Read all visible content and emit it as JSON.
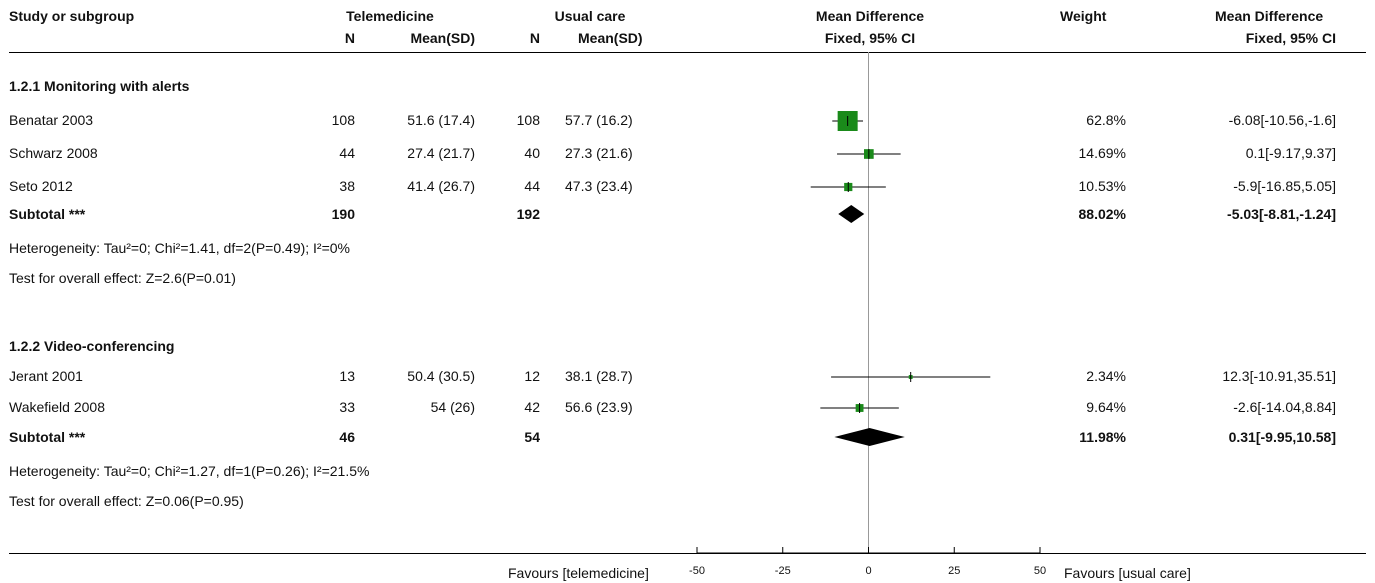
{
  "header": {
    "study": "Study or subgroup",
    "group1": "Telemedicine",
    "group2": "Usual care",
    "md": "Mean Difference",
    "weight": "Weight",
    "md2": "Mean Difference",
    "n": "N",
    "meansd": "Mean(SD)",
    "method": "Fixed, 95% CI",
    "method2": "Fixed, 95% CI"
  },
  "subgroups": [
    {
      "title": "1.2.1 Monitoring with alerts",
      "studies": [
        {
          "name": "Benatar 2003",
          "n1": "108",
          "m1": "51.6 (17.4)",
          "n2": "108",
          "m2": "57.7 (16.2)",
          "weight": "62.8%",
          "ci_text": "-6.08[-10.56,-1.6]"
        },
        {
          "name": "Schwarz 2008",
          "n1": "44",
          "m1": "27.4 (21.7)",
          "n2": "40",
          "m2": "27.3 (21.6)",
          "weight": "14.69%",
          "ci_text": "0.1[-9.17,9.37]"
        },
        {
          "name": "Seto 2012",
          "n1": "38",
          "m1": "41.4 (26.7)",
          "n2": "44",
          "m2": "47.3 (23.4)",
          "weight": "10.53%",
          "ci_text": "-5.9[-16.85,5.05]"
        }
      ],
      "subtotal": {
        "label": "Subtotal ***",
        "n1": "190",
        "n2": "192",
        "weight": "88.02%",
        "ci_text": "-5.03[-8.81,-1.24]"
      },
      "heterogeneity": "Heterogeneity: Tau²=0; Chi²=1.41, df=2(P=0.49); I²=0%",
      "overall": "Test for overall effect: Z=2.6(P=0.01)"
    },
    {
      "title": "1.2.2 Video-conferencing",
      "studies": [
        {
          "name": "Jerant 2001",
          "n1": "13",
          "m1": "50.4 (30.5)",
          "n2": "12",
          "m2": "38.1 (28.7)",
          "weight": "2.34%",
          "ci_text": "12.3[-10.91,35.51]"
        },
        {
          "name": "Wakefield 2008",
          "n1": "33",
          "m1": "54 (26)",
          "n2": "42",
          "m2": "56.6 (23.9)",
          "weight": "9.64%",
          "ci_text": "-2.6[-14.04,8.84]"
        }
      ],
      "subtotal": {
        "label": "Subtotal ***",
        "n1": "46",
        "n2": "54",
        "weight": "11.98%",
        "ci_text": "0.31[-9.95,10.58]"
      },
      "heterogeneity": "Heterogeneity: Tau²=0; Chi²=1.27, df=1(P=0.26); I²=21.5%",
      "overall": "Test for overall effect: Z=0.06(P=0.95)"
    }
  ],
  "footer": {
    "favours_left": "Favours [telemedicine]",
    "favours_right": "Favours [usual care]"
  },
  "colors": {
    "study_marker": "#1a8a1a",
    "diamond": "#000000",
    "axis": "#000000"
  },
  "chart_data": {
    "type": "forest",
    "xlim": [
      -50,
      50
    ],
    "xticks": [
      "-50",
      "-25",
      "0",
      "25",
      "50"
    ],
    "null_line": 0,
    "studies": [
      {
        "name": "Benatar 2003",
        "md": -6.08,
        "lo": -10.56,
        "hi": -1.6,
        "weight": 62.8
      },
      {
        "name": "Schwarz 2008",
        "md": 0.1,
        "lo": -9.17,
        "hi": 9.37,
        "weight": 14.69
      },
      {
        "name": "Seto 2012",
        "md": -5.9,
        "lo": -16.85,
        "hi": 5.05,
        "weight": 10.53
      },
      {
        "name": "Jerant 2001",
        "md": 12.3,
        "lo": -10.91,
        "hi": 35.51,
        "weight": 2.34
      },
      {
        "name": "Wakefield 2008",
        "md": -2.6,
        "lo": -14.04,
        "hi": 8.84,
        "weight": 9.64
      }
    ],
    "subtotals": [
      {
        "name": "Subtotal 1.2.1",
        "md": -5.03,
        "lo": -8.81,
        "hi": -1.24
      },
      {
        "name": "Subtotal 1.2.2",
        "md": 0.31,
        "lo": -9.95,
        "hi": 10.58
      }
    ]
  }
}
